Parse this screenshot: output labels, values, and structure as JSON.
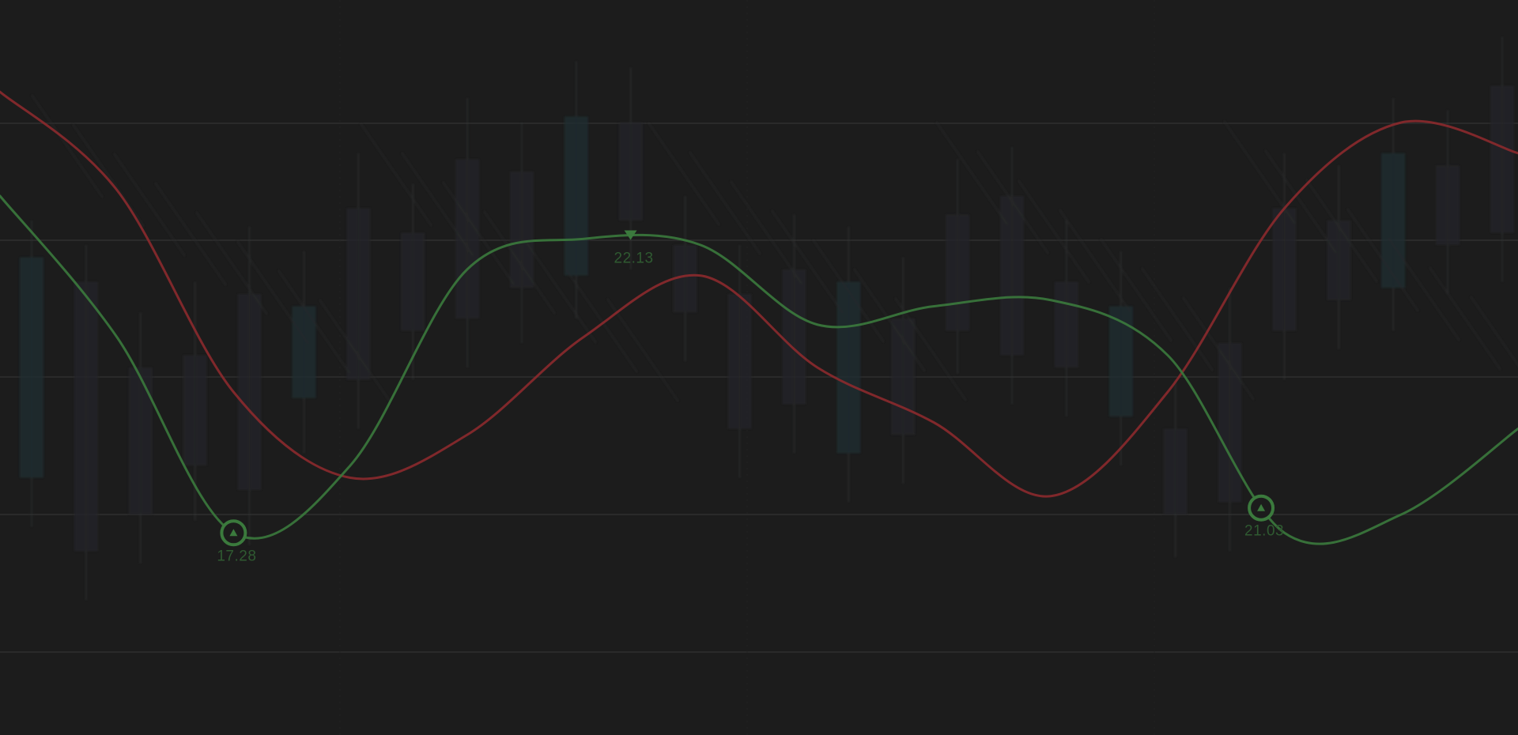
{
  "chart_data": {
    "type": "line",
    "title": "",
    "xlabel": "",
    "ylabel": "",
    "grid": true,
    "legend": "none",
    "ylim": [
      14,
      26
    ],
    "x": [
      0,
      1,
      2,
      3,
      4,
      5,
      6,
      7,
      8,
      9,
      10,
      11,
      12,
      13
    ],
    "series": [
      {
        "color": "#3b7a3d",
        "values": [
          22.8,
          20.5,
          17.3,
          18.4,
          21.6,
          22.1,
          22.0,
          20.7,
          21.0,
          21.1,
          20.2,
          17.3,
          17.6,
          19.0
        ]
      },
      {
        "color": "#8c2a2e",
        "values": [
          24.5,
          22.9,
          19.6,
          18.2,
          18.9,
          20.5,
          21.5,
          20.0,
          19.1,
          17.9,
          19.6,
          22.6,
          24.0,
          23.5
        ]
      }
    ],
    "annotations": [
      {
        "series": 0,
        "index": 2.0,
        "value": "17.28",
        "marker": "up",
        "label_pos": "below"
      },
      {
        "series": 0,
        "index": 5.4,
        "value": "22.13",
        "marker": "down",
        "label_pos": "below"
      },
      {
        "series": 0,
        "index": 10.8,
        "value": "21.03",
        "marker": "up",
        "label_pos": "below"
      }
    ],
    "background_candles": [
      {
        "o": 18.2,
        "c": 21.8,
        "h": 22.4,
        "l": 17.4
      },
      {
        "o": 21.4,
        "c": 17.0,
        "h": 22.0,
        "l": 16.2
      },
      {
        "o": 17.6,
        "c": 20.0,
        "h": 20.9,
        "l": 16.8
      },
      {
        "o": 20.2,
        "c": 18.4,
        "h": 21.4,
        "l": 17.5
      },
      {
        "o": 18.0,
        "c": 21.2,
        "h": 22.3,
        "l": 17.1
      },
      {
        "o": 21.0,
        "c": 19.5,
        "h": 21.9,
        "l": 18.6
      },
      {
        "o": 19.8,
        "c": 22.6,
        "h": 23.5,
        "l": 19.0
      },
      {
        "o": 22.2,
        "c": 20.6,
        "h": 23.0,
        "l": 19.8
      },
      {
        "o": 20.8,
        "c": 23.4,
        "h": 24.4,
        "l": 20.0
      },
      {
        "o": 23.2,
        "c": 21.3,
        "h": 24.0,
        "l": 20.4
      },
      {
        "o": 21.5,
        "c": 24.1,
        "h": 25.0,
        "l": 20.8
      },
      {
        "o": 24.0,
        "c": 22.4,
        "h": 24.9,
        "l": 21.6
      },
      {
        "o": 22.0,
        "c": 20.9,
        "h": 22.8,
        "l": 20.1
      },
      {
        "o": 21.2,
        "c": 19.0,
        "h": 22.0,
        "l": 18.2
      },
      {
        "o": 19.4,
        "c": 21.6,
        "h": 22.5,
        "l": 18.6
      },
      {
        "o": 21.4,
        "c": 18.6,
        "h": 22.3,
        "l": 17.8
      },
      {
        "o": 18.9,
        "c": 20.8,
        "h": 21.8,
        "l": 18.1
      },
      {
        "o": 20.6,
        "c": 22.5,
        "h": 23.4,
        "l": 19.9
      },
      {
        "o": 22.8,
        "c": 20.2,
        "h": 23.6,
        "l": 19.4
      },
      {
        "o": 20.0,
        "c": 21.4,
        "h": 22.4,
        "l": 19.2
      },
      {
        "o": 21.0,
        "c": 19.2,
        "h": 21.9,
        "l": 18.4
      },
      {
        "o": 19.0,
        "c": 17.6,
        "h": 19.8,
        "l": 16.9
      },
      {
        "o": 17.8,
        "c": 20.4,
        "h": 21.3,
        "l": 17.0
      },
      {
        "o": 20.6,
        "c": 22.6,
        "h": 23.5,
        "l": 19.8
      },
      {
        "o": 22.4,
        "c": 21.1,
        "h": 23.3,
        "l": 20.3
      },
      {
        "o": 21.3,
        "c": 23.5,
        "h": 24.4,
        "l": 20.6
      },
      {
        "o": 23.3,
        "c": 22.0,
        "h": 24.2,
        "l": 21.2
      },
      {
        "o": 22.2,
        "c": 24.6,
        "h": 25.4,
        "l": 21.4
      }
    ]
  },
  "colors": {
    "background": "#1c1c1c",
    "grid": "#2e2e2e",
    "bull_series": "#3b7a3d",
    "bear_series": "#8c2a2e",
    "label": "#2f5a31",
    "candle": "#262729",
    "wick": "#3a3c3e",
    "accent_teal": "#1d2e33"
  }
}
